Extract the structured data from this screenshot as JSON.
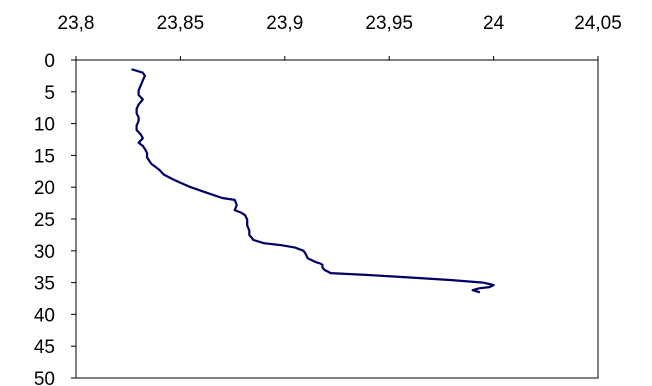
{
  "chart_data": {
    "type": "line",
    "title": "",
    "xlabel": "",
    "ylabel": "",
    "x_axis_position": "top",
    "y_axis_inverted": true,
    "xlim": [
      23.8,
      24.05
    ],
    "ylim": [
      0,
      50
    ],
    "x_ticks": [
      "23,8",
      "23,85",
      "23,9",
      "23,95",
      "24",
      "24,05"
    ],
    "x_tick_values": [
      23.8,
      23.85,
      23.9,
      23.95,
      24.0,
      24.05
    ],
    "y_ticks": [
      "0",
      "5",
      "10",
      "15",
      "20",
      "25",
      "30",
      "35",
      "40",
      "45",
      "50"
    ],
    "y_tick_values": [
      0,
      5,
      10,
      15,
      20,
      25,
      30,
      35,
      40,
      45,
      50
    ],
    "grid": false,
    "legend": "none",
    "line_color": "#000066",
    "series": [
      {
        "x": [
          23.827,
          23.832,
          23.833,
          23.832,
          23.831,
          23.83,
          23.83,
          23.832,
          23.83,
          23.829,
          23.829,
          23.83,
          23.83,
          23.829,
          23.829,
          23.831,
          23.832,
          23.83,
          23.832,
          23.833,
          23.834,
          23.834,
          23.835,
          23.836,
          23.838,
          23.84,
          23.842,
          23.846,
          23.85,
          23.855,
          23.862,
          23.87,
          23.876,
          23.877,
          23.876,
          23.879,
          23.881,
          23.882,
          23.882,
          23.883,
          23.883,
          23.885,
          23.89,
          23.898,
          23.905,
          23.909,
          23.91,
          23.911,
          23.913,
          23.915,
          23.917,
          23.918,
          23.918,
          23.919,
          23.922,
          23.94,
          23.96,
          23.98,
          23.995,
          24.0,
          23.998,
          23.993,
          23.99,
          23.993
        ],
        "y": [
          1.5,
          2.0,
          2.5,
          3.2,
          4.0,
          4.8,
          5.5,
          6.2,
          7.0,
          7.7,
          8.4,
          9.0,
          9.6,
          10.3,
          11.0,
          11.7,
          12.3,
          13.0,
          13.5,
          14.0,
          14.6,
          15.3,
          15.8,
          16.3,
          16.8,
          17.3,
          18.0,
          18.7,
          19.3,
          20.0,
          20.8,
          21.7,
          22.0,
          22.8,
          23.6,
          24.0,
          24.4,
          25.1,
          26.0,
          26.8,
          27.5,
          28.3,
          28.8,
          29.1,
          29.5,
          30.0,
          30.5,
          31.2,
          31.5,
          31.8,
          32.0,
          32.2,
          32.6,
          33.0,
          33.5,
          33.8,
          34.2,
          34.6,
          35.0,
          35.4,
          35.7,
          35.9,
          36.2,
          36.5
        ]
      }
    ]
  }
}
